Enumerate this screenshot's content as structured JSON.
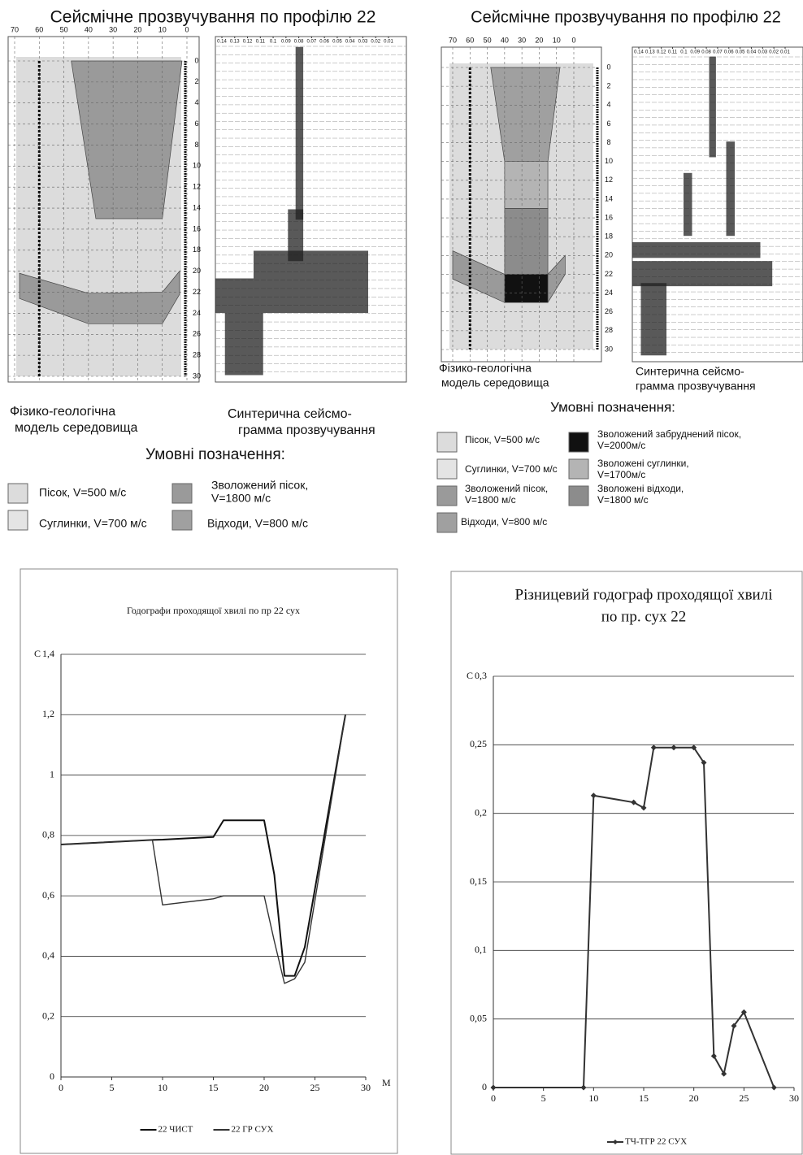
{
  "panels": [
    {
      "title": "Сейсмічне прозвучування по профілю 22",
      "x_ticks": [
        70,
        60,
        50,
        40,
        30,
        20,
        10,
        0
      ],
      "depth_ticks": [
        0,
        2,
        4,
        6,
        8,
        10,
        12,
        14,
        16,
        18,
        20,
        22,
        24,
        26,
        28,
        30
      ],
      "seis_ticks": [
        0.14,
        0.13,
        0.12,
        0.11,
        0.1,
        0.09,
        0.08,
        0.07,
        0.06,
        0.05,
        0.04,
        0.03,
        0.02,
        0.01
      ],
      "model_caption": [
        "Фізико-геологічна",
        "модель середовища"
      ],
      "seismogram_caption": [
        "Синтерична сейсмо-",
        "грамма прозвучування"
      ],
      "legend_title": "Умовні позначення:",
      "legend": [
        {
          "label": [
            "Пісок, V=500 м/с"
          ],
          "color": "#dcdcdc"
        },
        {
          "label": [
            "Суглинки, V=700 м/с"
          ],
          "color": "#e4e4e4"
        },
        {
          "label": [
            "Зволожений пісок,",
            "V=1800 м/с"
          ],
          "color": "#9a9a9a"
        },
        {
          "label": [
            "Відходи, V=800 м/с"
          ],
          "color": "#a0a0a0"
        }
      ]
    },
    {
      "title": "Сейсмічне прозвучування по профілю 22",
      "x_ticks": [
        70,
        60,
        50,
        40,
        30,
        20,
        10,
        0
      ],
      "depth_ticks": [
        0,
        2,
        4,
        6,
        8,
        10,
        12,
        14,
        16,
        18,
        20,
        22,
        24,
        26,
        28,
        30
      ],
      "seis_ticks": [
        0.14,
        0.13,
        0.12,
        0.11,
        0.1,
        0.09,
        0.08,
        0.07,
        0.06,
        0.05,
        0.04,
        0.03,
        0.02,
        0.01
      ],
      "model_caption": [
        "Фізико-геологічна",
        "модель середовища"
      ],
      "seismogram_caption": [
        "Синтерична сейсмо-",
        "грамма прозвучування"
      ],
      "legend_title": "Умовні позначення:",
      "legend": [
        {
          "label": [
            "Пісок, V=500 м/с"
          ],
          "color": "#dcdcdc"
        },
        {
          "label": [
            "Суглинки, V=700 м/с"
          ],
          "color": "#e4e4e4"
        },
        {
          "label": [
            "Зволожений пісок,",
            "V=1800 м/с"
          ],
          "color": "#9a9a9a"
        },
        {
          "label": [
            "Відходи, V=800 м/с"
          ],
          "color": "#a0a0a0"
        },
        {
          "label": [
            "Зволожений забруднений пісок,",
            "V=2000м/с"
          ],
          "color": "#111111"
        },
        {
          "label": [
            "Зволожені суглинки,",
            "V=1700м/с"
          ],
          "color": "#b4b4b4"
        },
        {
          "label": [
            "Зволожені відходи,",
            "V=1800 м/с"
          ],
          "color": "#8c8c8c"
        }
      ]
    }
  ],
  "chart_data": [
    {
      "type": "line",
      "title": [
        "Годографи проходящої хвилі  по пр 22 сух"
      ],
      "y_label": "С",
      "x_label": "М",
      "x": [
        0,
        9,
        10,
        15,
        16,
        20,
        21,
        22,
        23,
        24,
        28
      ],
      "series": [
        {
          "name": "22 ЧИСТ",
          "color": "#111111",
          "values": [
            0.77,
            0.785,
            0.786,
            0.795,
            0.85,
            0.85,
            0.67,
            0.335,
            0.335,
            0.43,
            1.2
          ]
        },
        {
          "name": "22 ГР СУХ",
          "color": "#333333",
          "values": [
            0.77,
            0.785,
            0.57,
            0.59,
            0.6,
            0.6,
            0.45,
            0.31,
            0.325,
            0.38,
            1.2
          ]
        }
      ],
      "xlim": [
        0,
        30
      ],
      "xticks": [
        0,
        5,
        10,
        15,
        20,
        25,
        30
      ],
      "ylim": [
        0,
        1.4
      ],
      "yticks": [
        0,
        {
          "value": 0.2,
          "label": "0,2"
        },
        {
          "value": 0.4,
          "label": "0,4"
        },
        {
          "value": 0.6,
          "label": "0,6"
        },
        {
          "value": 0.8,
          "label": "0,8"
        },
        1,
        {
          "value": 1.2,
          "label": "1,2"
        },
        {
          "value": 1.4,
          "label": "1,4"
        }
      ],
      "grid": true,
      "markers": false
    },
    {
      "type": "line",
      "title": [
        "Різницевий годограф проходящої хвилі",
        "по пр. сух 22"
      ],
      "y_label": "С",
      "x_label": "М",
      "x": [
        0,
        9,
        10,
        14,
        15,
        16,
        18,
        20,
        21,
        22,
        23,
        24,
        25,
        28
      ],
      "series": [
        {
          "name": "ТЧ-ТГР 22 СУХ",
          "color": "#333333",
          "values": [
            0,
            0,
            0.213,
            0.208,
            0.204,
            0.248,
            0.248,
            0.248,
            0.237,
            0.023,
            0.01,
            0.045,
            0.055,
            0
          ]
        }
      ],
      "xlim": [
        0,
        30
      ],
      "xticks": [
        0,
        5,
        10,
        15,
        20,
        25,
        30
      ],
      "ylim": [
        0,
        0.3
      ],
      "yticks": [
        0,
        {
          "value": 0.05,
          "label": "0,05"
        },
        {
          "value": 0.1,
          "label": "0,1"
        },
        {
          "value": 0.15,
          "label": "0,15"
        },
        {
          "value": 0.2,
          "label": "0,2"
        },
        {
          "value": 0.25,
          "label": "0,25"
        },
        {
          "value": 0.3,
          "label": "0,3"
        }
      ],
      "grid": true,
      "markers": true
    }
  ]
}
